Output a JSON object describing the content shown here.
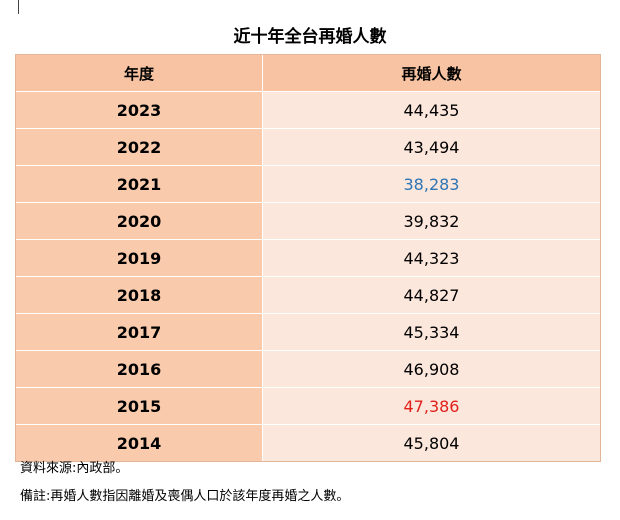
{
  "title": "近十年全台再婚人數",
  "table": {
    "header": [
      "年度",
      "再婚人數"
    ],
    "rows": [
      [
        "2023",
        "44,435"
      ],
      [
        "2022",
        "43,494"
      ],
      [
        "2021",
        "38,283"
      ],
      [
        "2020",
        "39,832"
      ],
      [
        "2019",
        "44,323"
      ],
      [
        "2018",
        "44,827"
      ],
      [
        "2017",
        "45,334"
      ],
      [
        "2016",
        "46,908"
      ],
      [
        "2015",
        "47,386"
      ],
      [
        "2014",
        "45,804"
      ]
    ],
    "value_colors": {
      "2": "#2e75b6",
      "8": "#e0201b"
    }
  },
  "notes": [
    "資料來源:內政部。",
    "備註:再婚人數指因離婚及喪偶人口於該年度再婚之人數。"
  ]
}
